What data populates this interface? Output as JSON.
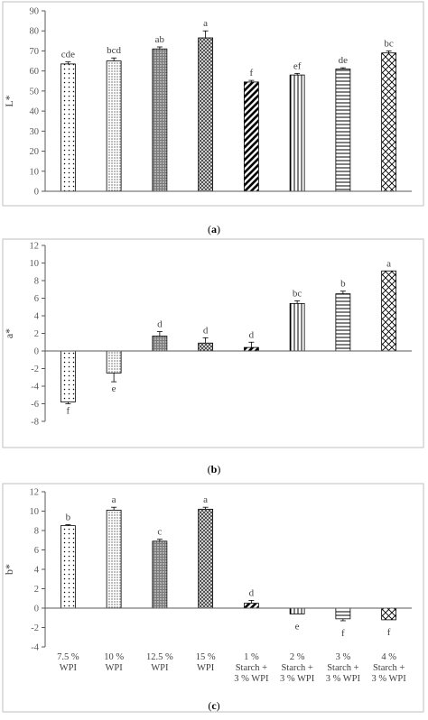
{
  "chart_data": [
    {
      "type": "bar",
      "caption": "(a)",
      "ylabel": "L*",
      "ylim": [
        0,
        90
      ],
      "yticks": [
        0,
        10,
        20,
        30,
        40,
        50,
        60,
        70,
        80,
        90
      ],
      "grid": false,
      "legend": "none",
      "values": [
        63.5,
        65,
        71,
        76.5,
        54.5,
        58,
        61,
        69
      ],
      "errors": [
        1.0,
        1.5,
        1.0,
        3.5,
        0.8,
        0.8,
        0.6,
        1.0
      ],
      "labels": [
        "cde",
        "bcd",
        "ab",
        "a",
        "f",
        "ef",
        "de",
        "bc"
      ],
      "patterns": [
        "sparse-dots",
        "dense-dots",
        "dark-dots",
        "dark-cross",
        "thick-diag",
        "vertical",
        "horizontal",
        "diag-cross"
      ]
    },
    {
      "type": "bar",
      "caption": "(b)",
      "ylabel": "a*",
      "ylim": [
        -8,
        12
      ],
      "yticks": [
        -8,
        -6,
        -4,
        -2,
        0,
        2,
        4,
        6,
        8,
        10,
        12
      ],
      "grid": false,
      "legend": "none",
      "values": [
        -5.8,
        -2.5,
        1.7,
        0.9,
        0.4,
        5.4,
        6.5,
        9.1
      ],
      "errors": [
        0.2,
        1.0,
        0.5,
        0.6,
        0.6,
        0.3,
        0.3,
        0.0
      ],
      "labels": [
        "f",
        "e",
        "d",
        "d",
        "d",
        "bc",
        "b",
        "a"
      ],
      "patterns": [
        "sparse-dots",
        "dense-dots",
        "dark-dots",
        "dark-cross",
        "thick-diag",
        "vertical",
        "horizontal",
        "diag-cross"
      ]
    },
    {
      "type": "bar",
      "caption": "(c)",
      "ylabel": "b*",
      "ylim": [
        -4,
        12
      ],
      "yticks": [
        -4,
        -2,
        0,
        2,
        4,
        6,
        8,
        10,
        12
      ],
      "grid": false,
      "legend": "none",
      "values": [
        8.5,
        10.1,
        6.9,
        10.2,
        0.5,
        -0.6,
        -1.1,
        -1.2
      ],
      "errors": [
        0.1,
        0.3,
        0.2,
        0.2,
        0.3,
        0.0,
        0.2,
        0.0
      ],
      "labels": [
        "b",
        "a",
        "c",
        "a",
        "d",
        "e",
        "f",
        "f"
      ],
      "patterns": [
        "sparse-dots",
        "dense-dots",
        "dark-dots",
        "dark-cross",
        "thick-diag",
        "vertical",
        "horizontal",
        "diag-cross"
      ],
      "categories": [
        [
          "7.5 %",
          "WPI"
        ],
        [
          "10 %",
          "WPI"
        ],
        [
          "12.5 %",
          "WPI"
        ],
        [
          "15 %",
          "WPI"
        ],
        [
          "1 %",
          "Starch +",
          "3 % WPI"
        ],
        [
          "2 %",
          "Starch +",
          "3 % WPI"
        ],
        [
          "3 %",
          "Starch +",
          "3 % WPI"
        ],
        [
          "4 %",
          "Starch +",
          "3 % WPI"
        ]
      ]
    }
  ],
  "colors": {
    "axis": "#595959",
    "frame": "#bfbfbf",
    "bar_stroke": "#000000"
  }
}
